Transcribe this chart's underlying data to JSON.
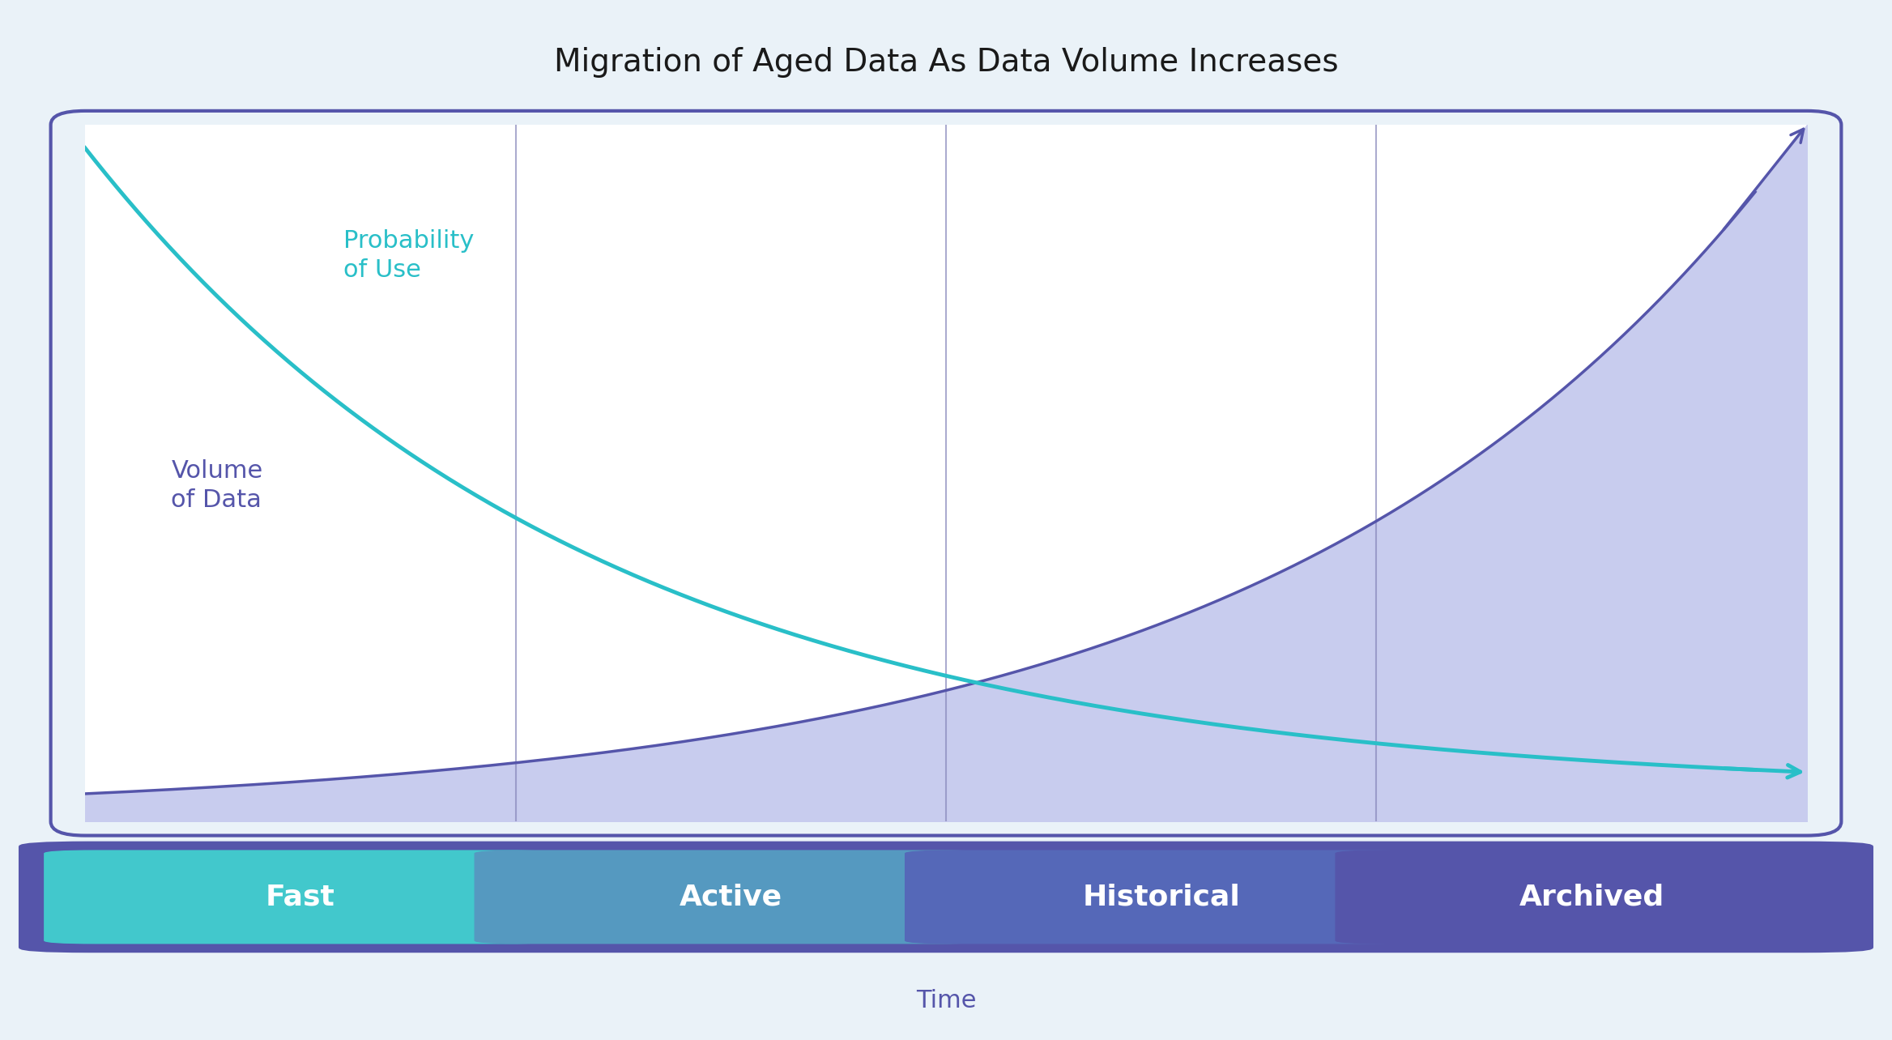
{
  "title": "Migration of Aged Data As Data Volume Increases",
  "title_fontsize": 28,
  "title_color": "#1a1a1a",
  "background_color": "#eaf2f8",
  "chart_bg_color": "#ffffff",
  "chart_border_color": "#5555aa",
  "grid_line_color": "#8888bb",
  "prob_label": "Probability\nof Use",
  "vol_label": "Volume\nof Data",
  "time_label": "Time",
  "prob_color": "#29bfc8",
  "vol_color": "#5555aa",
  "vol_fill_color": "#c8ccee",
  "categories": [
    "Fast",
    "Active",
    "Historical",
    "Archived"
  ],
  "cat_colors": [
    "#42c8cc",
    "#5599c0",
    "#5568b8",
    "#5555aa"
  ],
  "cat_border_color": "#5555aa",
  "cat_text_color": "#ffffff",
  "cat_fontsize": 26,
  "time_color": "#5555aa",
  "time_fontsize": 22,
  "label_color_prob": "#29bfc8",
  "label_color_vol": "#5555aa",
  "label_fontsize": 22,
  "prob_decay": 0.85,
  "vol_growth": 0.85
}
